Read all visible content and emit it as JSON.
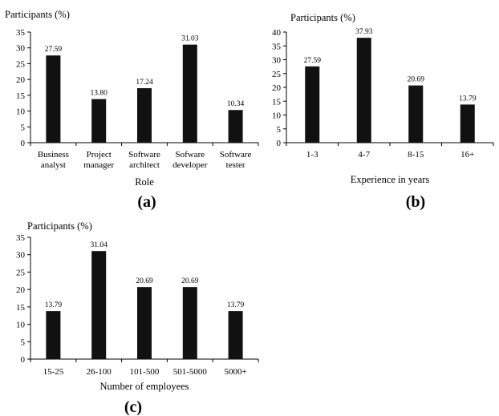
{
  "chart_data": [
    {
      "type": "bar",
      "ylabel": "Participants (%)",
      "xlabel": "Role",
      "panel_label": "(a)",
      "ylim": [
        0,
        35
      ],
      "yticks": [
        "0",
        "5",
        "10",
        "15",
        "20",
        "25",
        "30",
        "35"
      ],
      "categories": [
        [
          "Business",
          "analyst"
        ],
        [
          "Project",
          "manager"
        ],
        [
          "Software",
          "architect"
        ],
        [
          "Sofware",
          "developer"
        ],
        [
          "Software",
          "tester"
        ]
      ],
      "values": [
        27.59,
        13.8,
        17.24,
        31.03,
        10.34
      ],
      "value_labels": [
        "27.59",
        "13.80",
        "17.24",
        "31.03",
        "10.34"
      ],
      "grid": false,
      "bar_color": "#111111"
    },
    {
      "type": "bar",
      "ylabel": "Participants (%)",
      "xlabel": "Experience in years",
      "panel_label": "(b)",
      "ylim": [
        0,
        40
      ],
      "yticks": [
        "0",
        "5",
        "10",
        "15",
        "20",
        "25",
        "30",
        "35",
        "40"
      ],
      "categories": [
        [
          "1-3"
        ],
        [
          "4-7"
        ],
        [
          "8-15"
        ],
        [
          "16+"
        ]
      ],
      "values": [
        27.59,
        37.93,
        20.69,
        13.79
      ],
      "value_labels": [
        "27.59",
        "37.93",
        "20.69",
        "13.79"
      ],
      "grid": false,
      "bar_color": "#111111"
    },
    {
      "type": "bar",
      "ylabel": "Participants (%)",
      "xlabel": "Number of employees",
      "panel_label": "(c)",
      "ylim": [
        0,
        35
      ],
      "yticks": [
        "0",
        "5",
        "10",
        "15",
        "20",
        "25",
        "30",
        "35"
      ],
      "categories": [
        [
          "15-25"
        ],
        [
          "26-100"
        ],
        [
          "101-500"
        ],
        [
          "501-5000"
        ],
        [
          "5000+"
        ]
      ],
      "values": [
        13.79,
        31.04,
        20.69,
        20.69,
        13.79
      ],
      "value_labels": [
        "13.79",
        "31.04",
        "20.69",
        "20.69",
        "13.79"
      ],
      "grid": false,
      "bar_color": "#111111"
    }
  ]
}
